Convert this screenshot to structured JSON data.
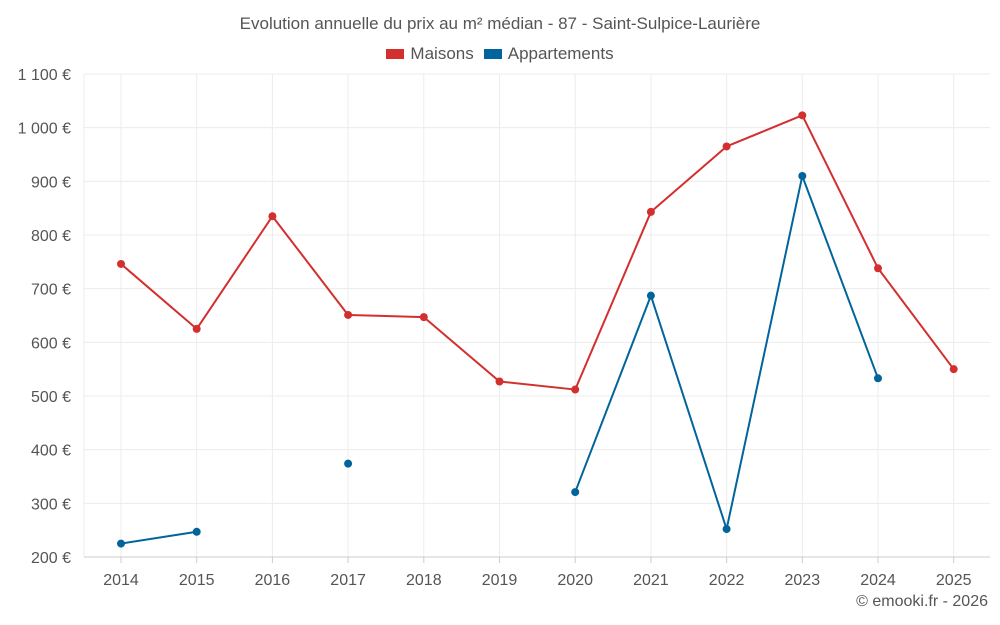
{
  "chart_data": {
    "type": "line",
    "title": "Evolution annuelle du prix au m² médian - 87 - Saint-Sulpice-Laurière",
    "x": [
      2014,
      2015,
      2016,
      2017,
      2018,
      2019,
      2020,
      2021,
      2022,
      2023,
      2024,
      2025
    ],
    "x_tick_labels": [
      "2014",
      "2015",
      "2016",
      "2017",
      "2018",
      "2019",
      "2020",
      "2021",
      "2022",
      "2023",
      "2024",
      "2025"
    ],
    "series": [
      {
        "name": "Maisons",
        "color": "#d32f2f",
        "values": [
          746,
          625,
          835,
          651,
          647,
          527,
          512,
          843,
          965,
          1023,
          738,
          550
        ]
      },
      {
        "name": "Appartements",
        "color": "#01649b",
        "values": [
          225,
          247,
          null,
          374,
          null,
          null,
          321,
          687,
          252,
          910,
          533,
          null
        ]
      }
    ],
    "ylim": [
      200,
      1100
    ],
    "y_ticks": [
      200,
      300,
      400,
      500,
      600,
      700,
      800,
      900,
      1000,
      1100
    ],
    "y_tick_labels": [
      "200 €",
      "300 €",
      "400 €",
      "500 €",
      "600 €",
      "700 €",
      "800 €",
      "900 €",
      "1 000 €",
      "1 100 €"
    ],
    "grid": true,
    "legend_position": "top-center",
    "xlabel": "",
    "ylabel": ""
  },
  "credit": "© emooki.fr - 2026"
}
